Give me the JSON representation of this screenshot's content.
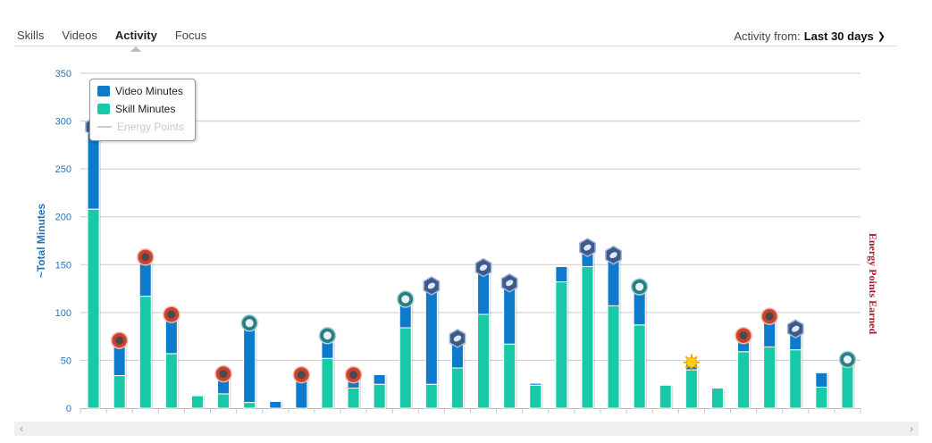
{
  "tabs": [
    "Skills",
    "Videos",
    "Activity",
    "Focus"
  ],
  "activity_from": {
    "label": "Activity from:",
    "value": "Last 30 days"
  },
  "colors": {
    "video": "#0d7acc",
    "skill": "#17c9a6",
    "left_axis": "#2a74b5",
    "right_axis": "#b0182b",
    "grid": "#cccccc"
  },
  "chart_data": {
    "type": "bar",
    "stacked": true,
    "ylabel": "~Total Minutes",
    "y2label": "Energy Points Earned",
    "ylim": [
      0,
      350
    ],
    "yticks": [
      0,
      50,
      100,
      150,
      200,
      250,
      300,
      350
    ],
    "grid": true,
    "legend_position": "top-left",
    "series": [
      {
        "name": "Skill Minutes",
        "values": [
          208,
          34,
          117,
          57,
          13,
          15,
          6,
          0,
          0,
          52,
          21,
          25,
          84,
          25,
          42,
          98,
          67,
          24,
          132,
          148,
          107,
          87,
          24,
          40,
          21,
          59,
          64,
          61,
          22,
          45
        ]
      },
      {
        "name": "Video Minutes",
        "values": [
          84,
          35,
          39,
          39,
          1,
          19,
          81,
          7,
          33,
          22,
          12,
          10,
          28,
          101,
          29,
          47,
          62,
          2,
          16,
          18,
          51,
          38,
          0,
          6,
          0,
          15,
          30,
          20,
          15,
          4
        ]
      },
      {
        "name": "Energy Points",
        "values": []
      }
    ],
    "badges": [
      "hex-badge",
      "red-circle-badge",
      "red-circle-badge",
      "red-circle-badge",
      null,
      "red-circle-badge",
      "teal-circle-badge",
      null,
      "red-circle-badge",
      "teal-circle-badge",
      "red-circle-badge",
      null,
      "teal-circle-badge",
      "hex-badge",
      "hex-badge",
      "hex-badge",
      "hex-badge",
      null,
      null,
      "hex-badge",
      "hex-badge",
      "teal-circle-badge",
      null,
      "sun-badge",
      null,
      "red-circle-badge",
      "red-circle-badge",
      "hex-badge",
      null,
      "teal-circle-badge"
    ]
  }
}
